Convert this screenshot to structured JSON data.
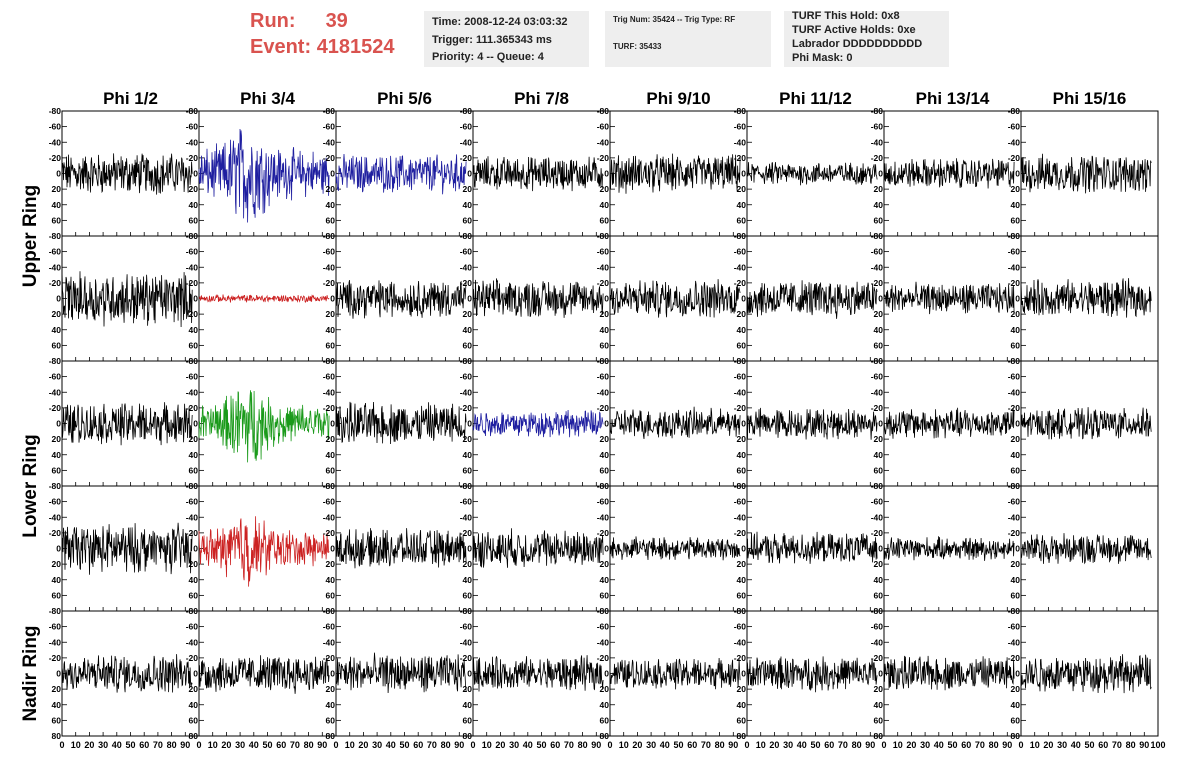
{
  "header": {
    "run_label": "Run:",
    "run_value": "39",
    "event_label": "Event:",
    "event_value": "4181524",
    "time": "Time: 2008-12-24 03:03:32",
    "trigger": "Trigger: 111.365343 ms",
    "priority": "Priority: 4 -- Queue: 4",
    "trig_num": "Trig Num: 35424 -- Trig Type: RF",
    "turf": "TURF: 35433",
    "turf_hold": "TURF This Hold: 0x8",
    "turf_active": "TURF Active Holds: 0xe",
    "labrador": "Labrador DDDDDDDDDD",
    "phi_mask": "Phi Mask: 0"
  },
  "colors": {
    "run_text": "#d9534f",
    "trace_default": "#000000",
    "trace_blue": "#1f1fa0",
    "trace_red": "#cc2222",
    "trace_green": "#1a9a1a",
    "info_bg": "#eeeeee"
  },
  "chart_data": {
    "type": "line",
    "title": "",
    "columns": [
      "Phi 1/2",
      "Phi 3/4",
      "Phi 5/6",
      "Phi 7/8",
      "Phi 9/10",
      "Phi 11/12",
      "Phi 13/14",
      "Phi 15/16"
    ],
    "row_groups": [
      {
        "label": "Upper Ring",
        "rows": [
          0,
          1
        ]
      },
      {
        "label": "Lower Ring",
        "rows": [
          2,
          3
        ]
      },
      {
        "label": "Nadir Ring",
        "rows": [
          4
        ]
      }
    ],
    "xlim": [
      0,
      100
    ],
    "ylim": [
      -80,
      80
    ],
    "x_ticks": [
      0,
      10,
      20,
      30,
      40,
      50,
      60,
      70,
      80,
      90,
      100
    ],
    "y_ticks": [
      -80,
      -60,
      -40,
      -20,
      0,
      20,
      40,
      60,
      80
    ],
    "x_tick_labels_printed": "0 10 20 30 40 50 60 70 80 90",
    "y_tick_labels": [
      "80",
      "60",
      "40",
      "20",
      "0",
      "-20",
      "-40",
      "-60",
      "-80"
    ],
    "trace_x_end": 95,
    "panels": [
      [
        "black",
        "blue",
        "blue",
        "black",
        "black",
        "black",
        "black",
        "black"
      ],
      [
        "black",
        "red",
        "black",
        "black",
        "black",
        "black",
        "black",
        "black"
      ],
      [
        "black",
        "green",
        "black",
        "blue",
        "black",
        "black",
        "black",
        "black"
      ],
      [
        "black",
        "red",
        "black",
        "black",
        "black",
        "black",
        "black",
        "black"
      ],
      [
        "black",
        "black",
        "black",
        "black",
        "black",
        "black",
        "black",
        "black"
      ]
    ],
    "amplitudes": [
      [
        22,
        40,
        20,
        18,
        20,
        12,
        16,
        20
      ],
      [
        28,
        4,
        20,
        20,
        20,
        20,
        16,
        20
      ],
      [
        22,
        32,
        22,
        14,
        16,
        16,
        16,
        16
      ],
      [
        26,
        30,
        20,
        20,
        12,
        16,
        12,
        16
      ],
      [
        20,
        20,
        20,
        18,
        16,
        18,
        18,
        20
      ]
    ]
  }
}
